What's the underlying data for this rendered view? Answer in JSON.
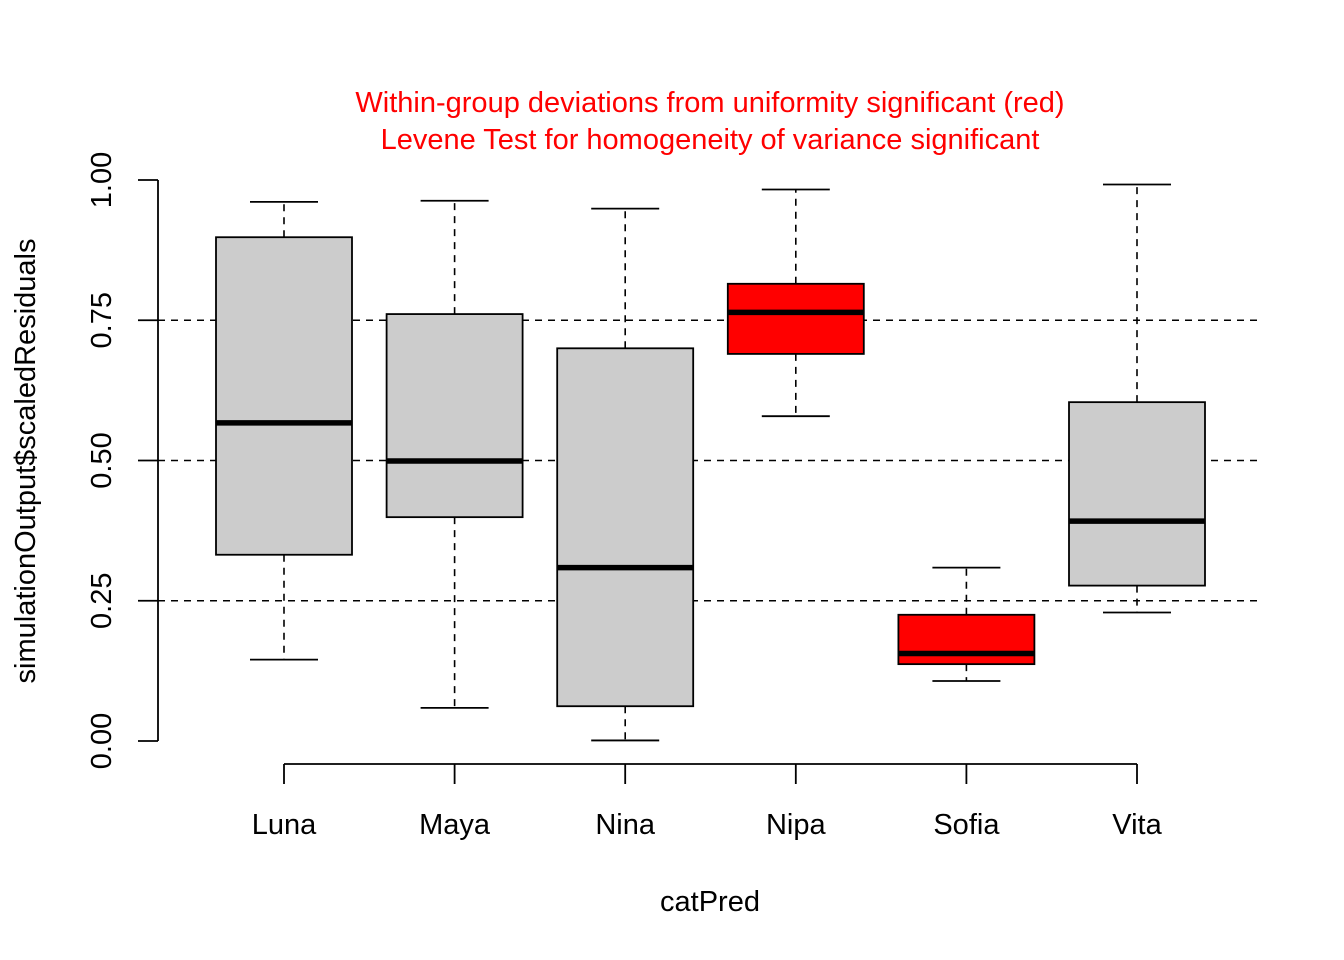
{
  "chart_data": {
    "type": "boxplot",
    "title_lines": [
      "Within-group deviations from uniformity significant (red)",
      "Levene Test for homogeneity of variance significant"
    ],
    "title_color": "#ff0000",
    "xlabel": "catPred",
    "ylabel": "simulationOutput$scaledResiduals",
    "ylim": [
      0,
      1
    ],
    "yticks": [
      "0.00",
      "0.25",
      "0.50",
      "0.75",
      "1.00"
    ],
    "ytick_values": [
      0,
      0.25,
      0.5,
      0.75,
      1.0
    ],
    "reference_lines": [
      0.25,
      0.5,
      0.75
    ],
    "grid": false,
    "colors": {
      "normal_fill": "#cccccc",
      "flagged_fill": "#ff0000",
      "stroke": "#000000"
    },
    "categories": [
      "Luna",
      "Maya",
      "Nina",
      "Nipa",
      "Sofia",
      "Vita"
    ],
    "boxes": [
      {
        "name": "Luna",
        "min": 0.145,
        "q1": 0.332,
        "median": 0.567,
        "q3": 0.898,
        "max": 0.961,
        "significant": false
      },
      {
        "name": "Maya",
        "min": 0.059,
        "q1": 0.399,
        "median": 0.499,
        "q3": 0.761,
        "max": 0.963,
        "significant": false
      },
      {
        "name": "Nina",
        "min": 0.001,
        "q1": 0.062,
        "median": 0.309,
        "q3": 0.7,
        "max": 0.949,
        "significant": false
      },
      {
        "name": "Nipa",
        "min": 0.579,
        "q1": 0.69,
        "median": 0.764,
        "q3": 0.815,
        "max": 0.983,
        "significant": true
      },
      {
        "name": "Sofia",
        "min": 0.107,
        "q1": 0.137,
        "median": 0.156,
        "q3": 0.225,
        "max": 0.309,
        "significant": true
      },
      {
        "name": "Vita",
        "min": 0.229,
        "q1": 0.277,
        "median": 0.392,
        "q3": 0.604,
        "max": 0.992,
        "significant": false
      }
    ]
  }
}
